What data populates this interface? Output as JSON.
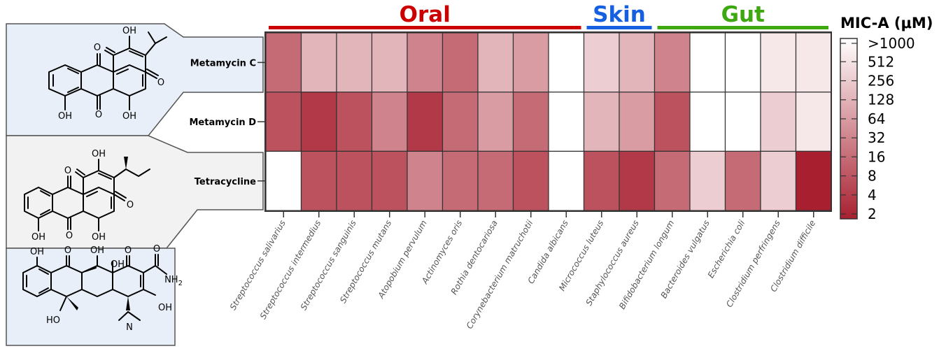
{
  "chart_data": {
    "type": "heatmap",
    "rows": [
      "Metamycin C",
      "Metamycin D",
      "Tetracycline"
    ],
    "columns": [
      "Streptococcus salivarius",
      "Streptococcus intermedius",
      "Streptococcus sanguinis",
      "Streptococcus mutans",
      "Atopobium pervulum",
      "Actinomyces oris",
      "Rothia dentocariosa",
      "Corynebacterium matruchotii",
      "Candida albicans",
      "Micrococcus luteus",
      "Staphylococcus aureus",
      "Bifidobacterium longum",
      "Bacteroides vulgatus",
      "Escherichia coli",
      "Clostridium perfringens",
      "Clostridium difficile"
    ],
    "groups": [
      {
        "label": "Oral",
        "color": "#cc0000",
        "start": 0,
        "end": 8
      },
      {
        "label": "Skin",
        "color": "#1560e0",
        "start": 9,
        "end": 10
      },
      {
        "label": "Gut",
        "color": "#3da80f",
        "start": 11,
        "end": 15
      }
    ],
    "mic_a_uM": [
      [
        16,
        128,
        128,
        128,
        32,
        16,
        128,
        64,
        1000,
        256,
        128,
        32,
        1000,
        1000,
        512,
        512
      ],
      [
        8,
        4,
        8,
        32,
        4,
        16,
        64,
        16,
        1000,
        128,
        64,
        8,
        1000,
        1000,
        256,
        512
      ],
      [
        1000,
        8,
        8,
        8,
        32,
        16,
        16,
        8,
        1000,
        8,
        4,
        16,
        256,
        16,
        256,
        2
      ]
    ],
    "colorbar": {
      "title": "MIC-A (μM)",
      "ticks": [
        "2",
        "4",
        "8",
        "16",
        "32",
        "64",
        "128",
        "256",
        "512",
        ">1000"
      ],
      "tick_values": [
        2,
        4,
        8,
        16,
        32,
        64,
        128,
        256,
        512,
        1000
      ],
      "scale": "log2",
      "low_color": "#a82030",
      "high_color": "#ffffff"
    }
  },
  "structures": {
    "atoms": {
      "oh": "OH",
      "o": "O",
      "nh2": "NH",
      "nh2_sub": "2",
      "n": "N",
      "ho": "HO"
    }
  }
}
